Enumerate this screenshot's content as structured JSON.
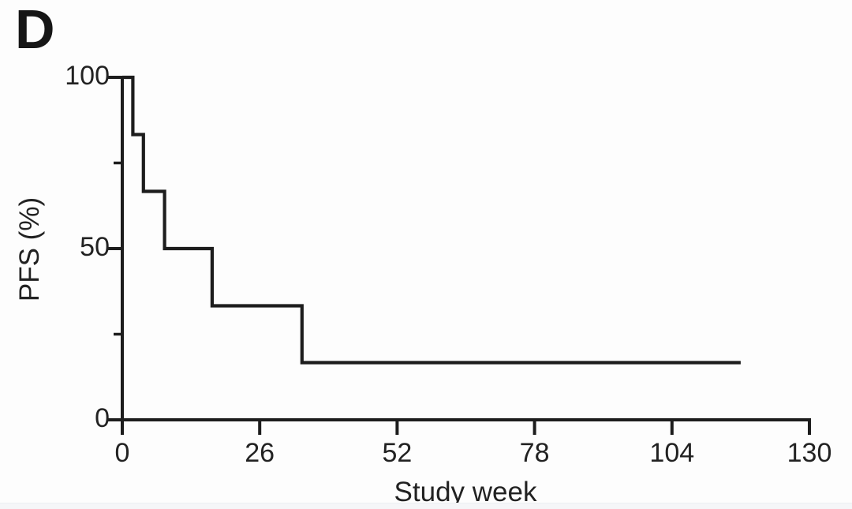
{
  "figure": {
    "panel_label": "D",
    "background_color": "#fdfdfd",
    "line_color": "#1d1d1d",
    "text_color": "#222222",
    "bottom_strip_color": "#f5f6f8"
  },
  "chart_data": {
    "type": "line",
    "subtype": "kaplan-meier-step-curve",
    "title": "",
    "xlabel": "Study week",
    "ylabel": "PFS (%)",
    "xlim": [
      0,
      130
    ],
    "ylim": [
      0,
      100
    ],
    "x_ticks": [
      0,
      26,
      52,
      78,
      104,
      130
    ],
    "y_ticks_major": [
      0,
      50,
      100
    ],
    "y_ticks_minor": [
      25,
      75
    ],
    "grid": false,
    "legend_position": "none",
    "series": [
      {
        "name": "PFS",
        "color": "#1d1d1d",
        "step_points": [
          {
            "week": 0,
            "pfs_pct": 100
          },
          {
            "week": 2,
            "pfs_pct": 83.3
          },
          {
            "week": 4,
            "pfs_pct": 66.7
          },
          {
            "week": 8,
            "pfs_pct": 50
          },
          {
            "week": 17,
            "pfs_pct": 33.3
          },
          {
            "week": 34,
            "pfs_pct": 16.7
          },
          {
            "week": 117,
            "pfs_pct": 16.7
          }
        ]
      }
    ]
  }
}
